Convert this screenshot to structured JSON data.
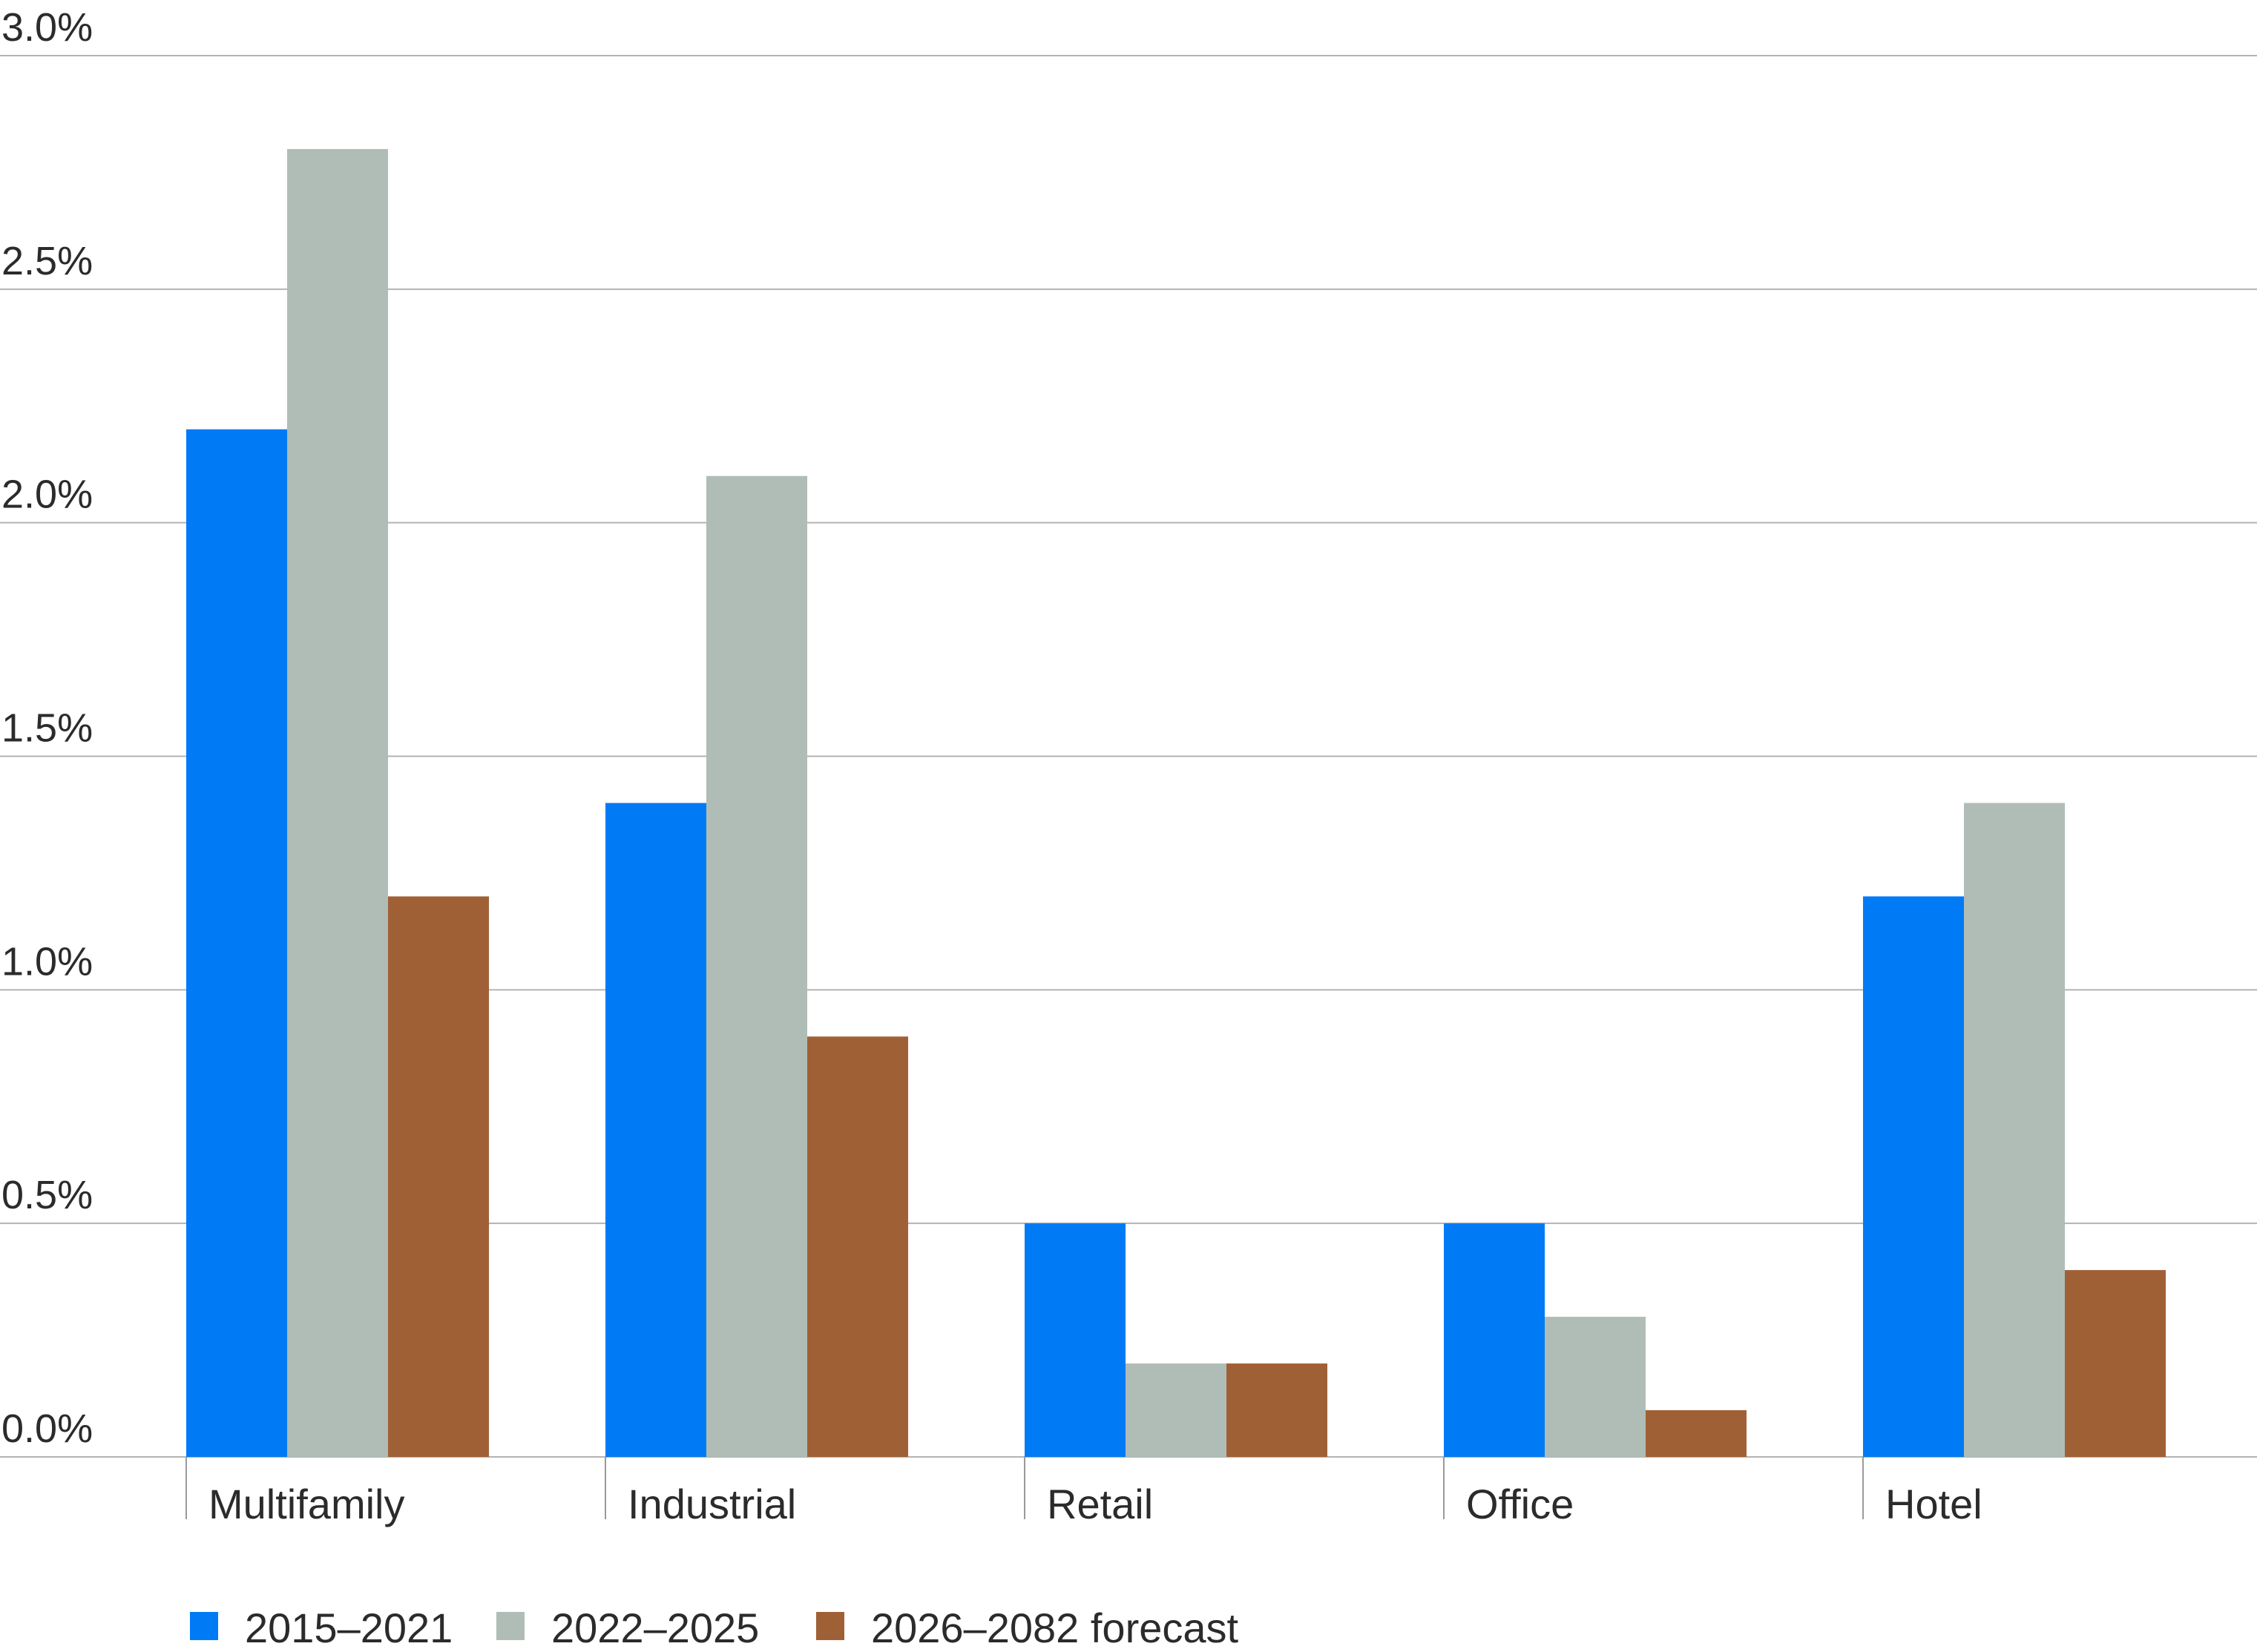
{
  "chart_data": {
    "type": "bar",
    "title": "",
    "xlabel": "",
    "ylabel": "",
    "ylim": [
      0,
      3.0
    ],
    "y_ticks": [
      0,
      0.5,
      1.0,
      1.5,
      2.0,
      2.5,
      3.0
    ],
    "y_tick_labels": [
      "0.0%",
      "0.5%",
      "1.0%",
      "1.5%",
      "2.0%",
      "2.5%",
      "3.0%"
    ],
    "grid": "horizontal",
    "legend_position": "bottom-left",
    "categories": [
      "Multifamily",
      "Industrial",
      "Retail",
      "Office",
      "Hotel"
    ],
    "series": [
      {
        "name": "2015–2021",
        "color": "#007bf5",
        "values": [
          2.2,
          1.4,
          0.5,
          0.5,
          1.2
        ]
      },
      {
        "name": "2022–2025",
        "color": "#afbdb6",
        "values": [
          2.8,
          2.1,
          0.2,
          0.3,
          1.4
        ]
      },
      {
        "name": "2026–2082 forecast",
        "color": "#a06036",
        "values": [
          1.2,
          0.9,
          0.2,
          0.1,
          0.4
        ]
      }
    ],
    "colors": {
      "gridline": "#b3b3b3",
      "text": "#2b2b2b",
      "separator": "#9a9a9a"
    }
  }
}
